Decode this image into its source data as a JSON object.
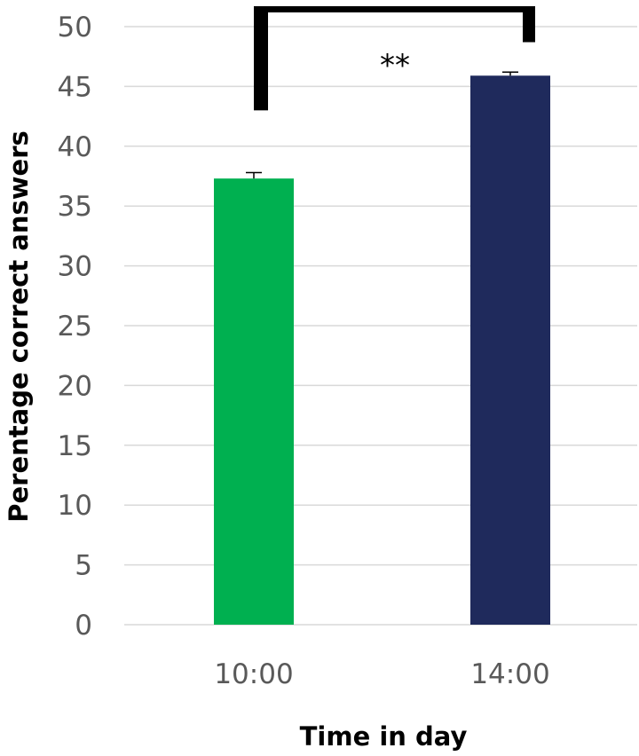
{
  "chart_data": {
    "type": "bar",
    "categories": [
      "10:00",
      "14:00"
    ],
    "values": [
      37.3,
      45.9
    ],
    "error": [
      0.5,
      0.3
    ],
    "ylim": [
      0,
      50
    ],
    "y_ticks": [
      0,
      5,
      10,
      15,
      20,
      25,
      30,
      35,
      40,
      45,
      50
    ],
    "xlabel": "Time in day",
    "ylabel": "Perentage correct answers",
    "grid": true,
    "colors": [
      "#00b050",
      "#1f2a5c"
    ],
    "gridline_color": "#d9d9d9",
    "significance": {
      "label": "**",
      "from_category": 0,
      "to_category": 1,
      "left_leg_bottom_value": 43,
      "right_leg_bottom_value": 48.7
    }
  }
}
